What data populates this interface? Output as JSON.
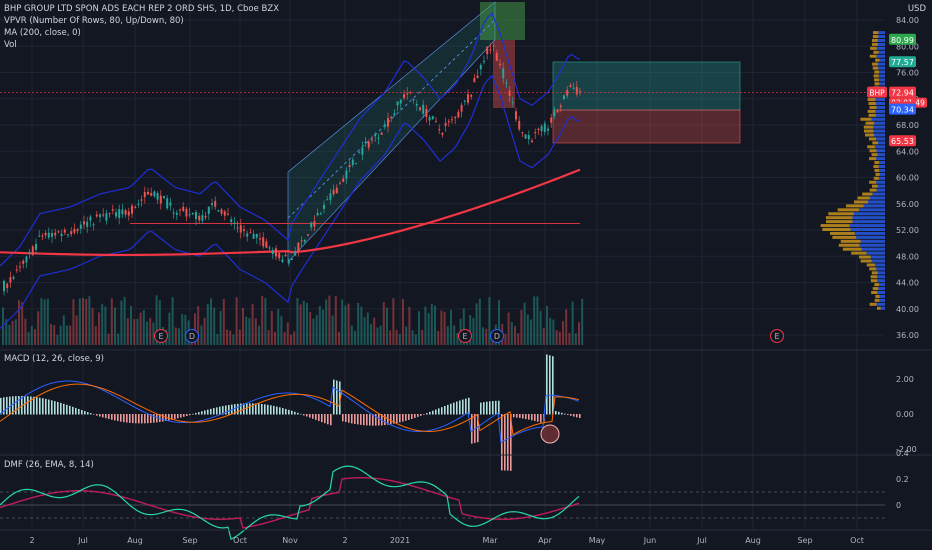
{
  "header": {
    "title": "BHP GROUP LTD SPON ADS EACH REP 2 ORD SHS, 1D, Cboe BZX",
    "indicators": [
      "VPVR (Number Of Rows, 80, Up/Down, 80)",
      "MA (200, close, 0)",
      "Vol"
    ]
  },
  "currency": "USD",
  "price_axis": [
    "84.00",
    "80.00",
    "76.00",
    "72.00",
    "68.00",
    "64.00",
    "60.00",
    "56.00",
    "52.00",
    "48.00",
    "44.00",
    "40.00",
    "36.00"
  ],
  "price_tags": [
    {
      "text": "80.99",
      "color": "#2ea84f"
    },
    {
      "text": "77.57",
      "color": "#22ab94"
    },
    {
      "text": "72.94",
      "color": "#f23645",
      "symbol": "BHP",
      "countdown": "03:01:49"
    },
    {
      "text": "70.64",
      "color": "#f23645"
    },
    {
      "text": "70.34",
      "color": "#2962ff"
    },
    {
      "text": "65.53",
      "color": "#f23645"
    }
  ],
  "earnings_markers": [
    "E",
    "D",
    "E",
    "D",
    "E"
  ],
  "macd": {
    "title": "MACD (12, 26, close, 9)",
    "axis": [
      "2.00",
      "0.00",
      "-2.00"
    ]
  },
  "dmf": {
    "title": "DMF (26, EMA, 8, 14)",
    "axis": [
      "0.4",
      "0.2",
      "0"
    ]
  },
  "time_axis": [
    "2",
    "Jul",
    "Aug",
    "Sep",
    "Oct",
    "Nov",
    "2",
    "2021",
    "Mar",
    "Apr",
    "May",
    "Jun",
    "Jul",
    "Aug",
    "Sep",
    "Oct"
  ],
  "colors": {
    "background": "#131722",
    "up": "#26a69a",
    "down": "#ef5350",
    "ma": "#f23645",
    "envelope": "#1e2fd6",
    "vpvr_up": "#2962ff",
    "vpvr_down": "#e0a21b"
  }
}
